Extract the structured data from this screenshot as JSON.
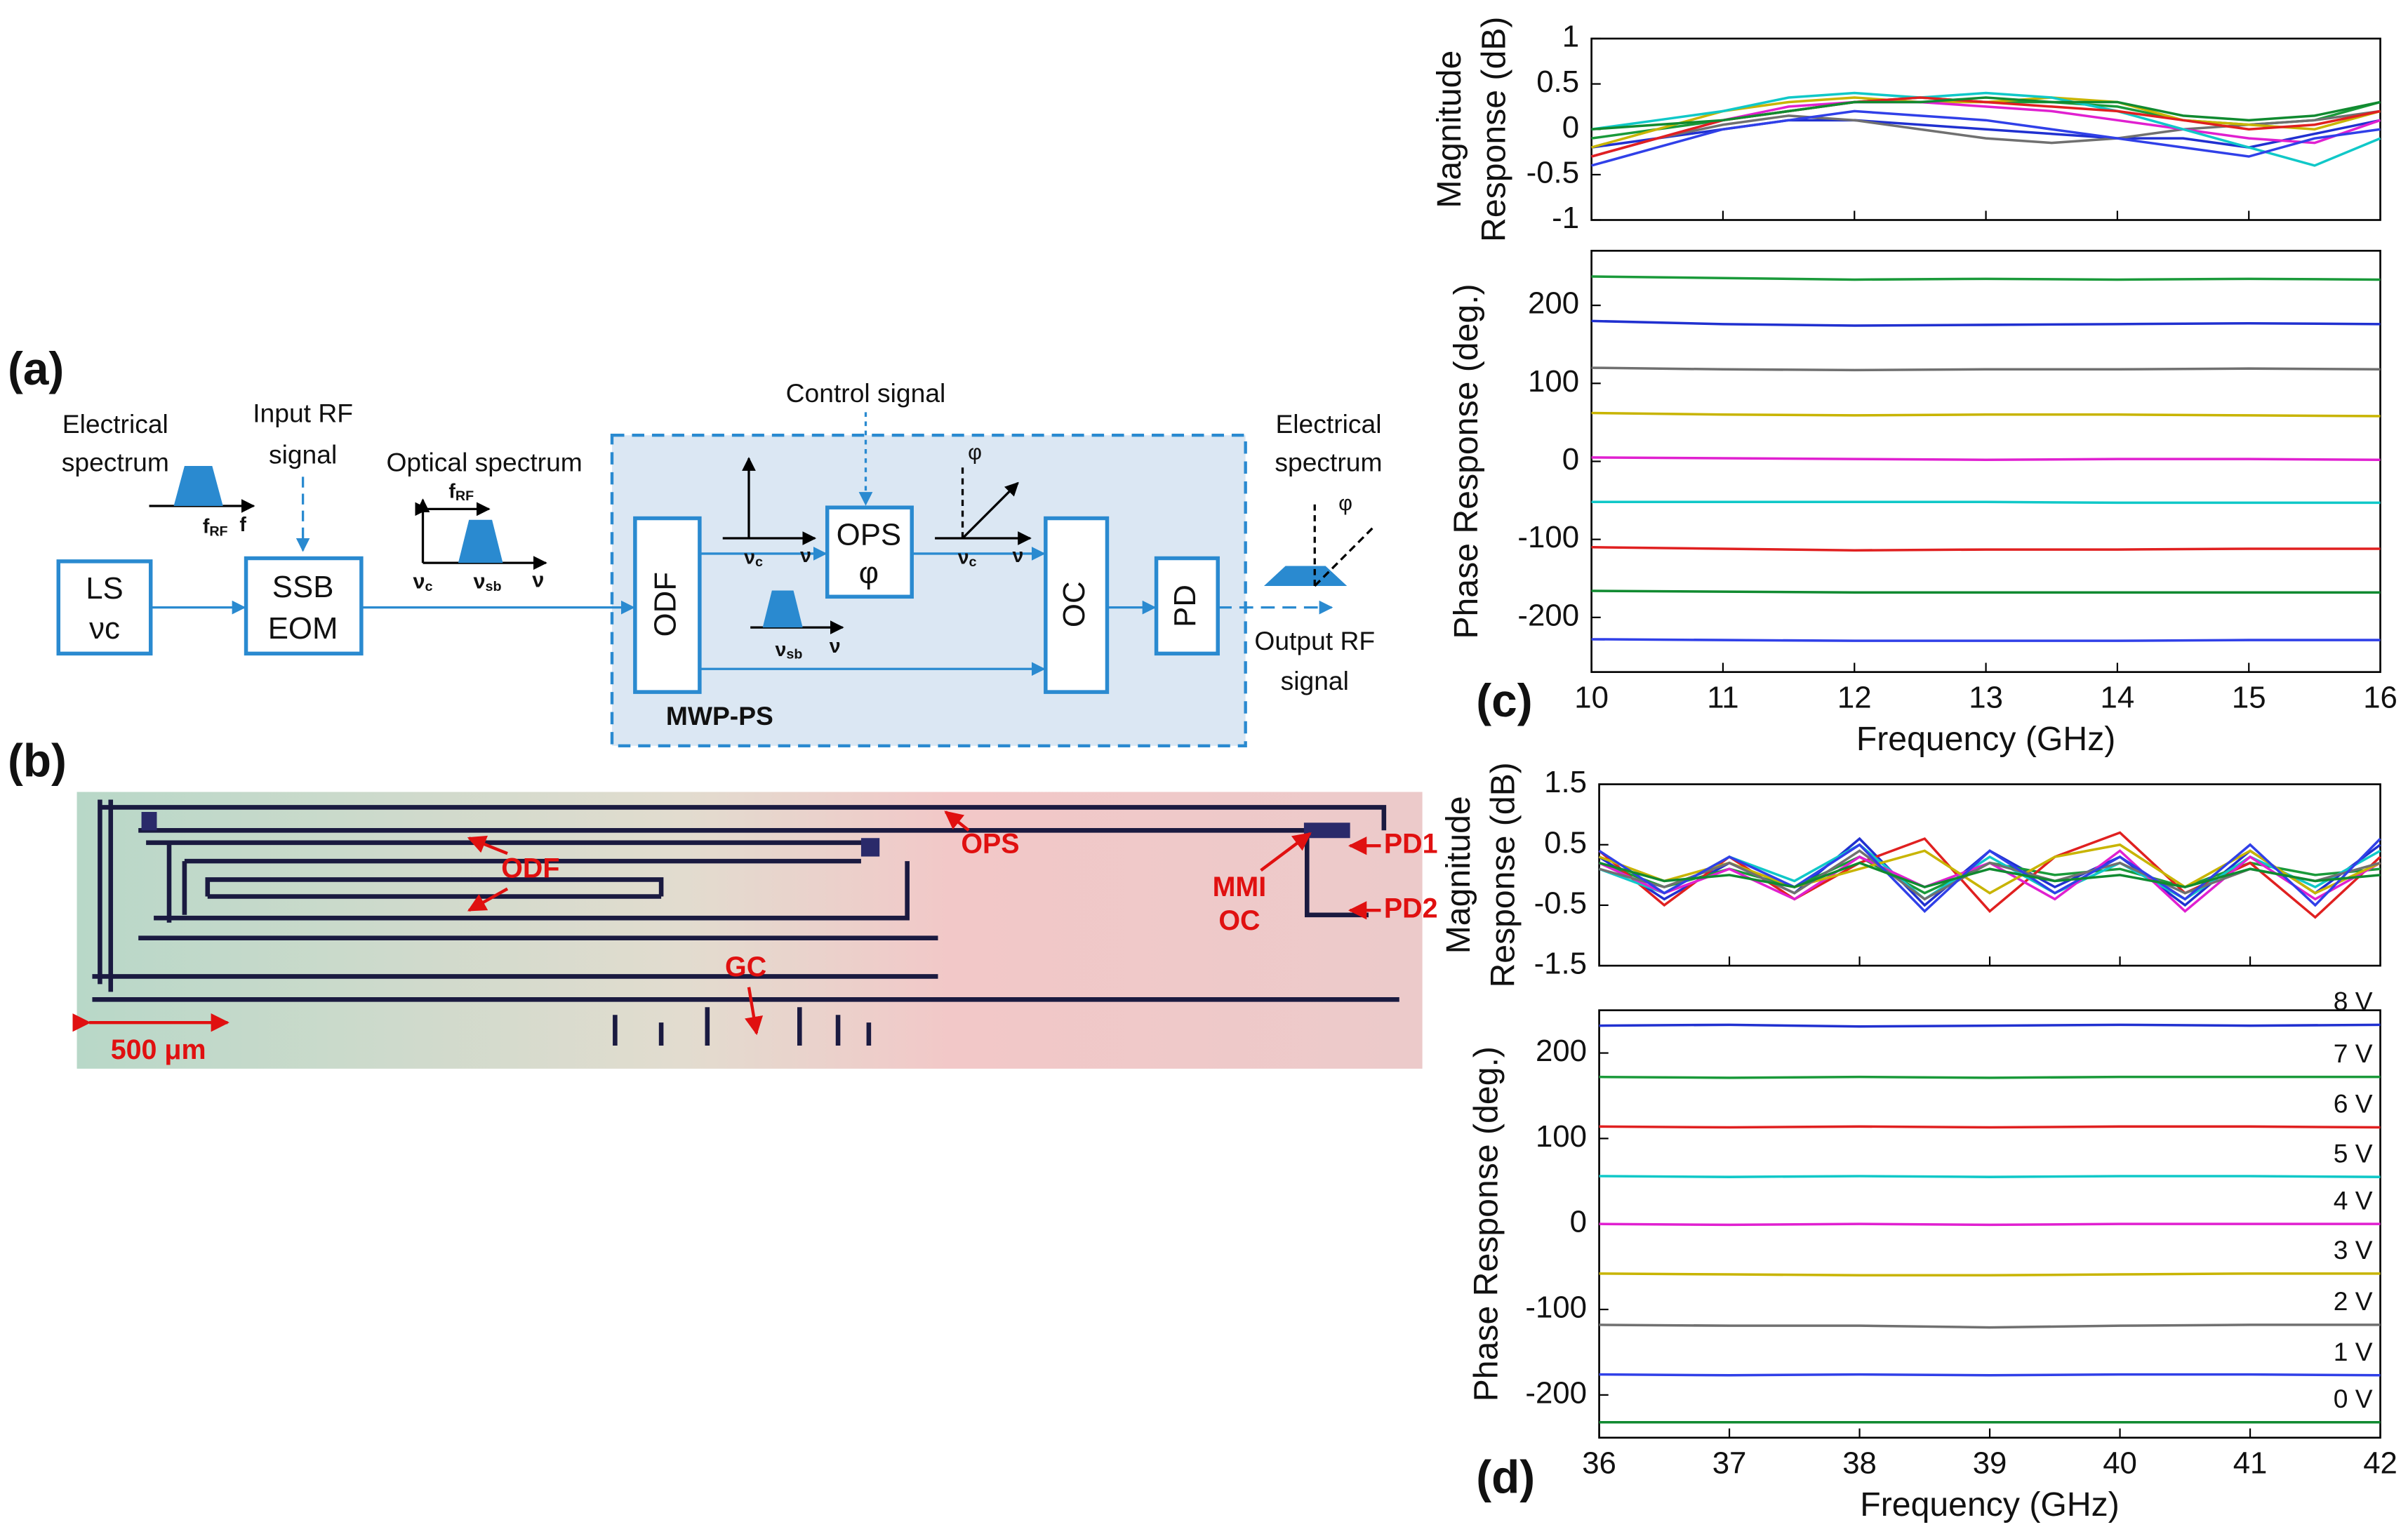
{
  "diagram": {
    "panel": "(a)",
    "left_spectrum_label": [
      "Electrical",
      "spectrum"
    ],
    "input_label": [
      "Input RF",
      "signal"
    ],
    "optical_label": "Optical spectrum",
    "control_label": "Control signal",
    "right_spectrum_label": [
      "Electrical",
      "spectrum"
    ],
    "output_label": [
      "Output RF",
      "signal"
    ],
    "group_label": "MWP-PS",
    "ls": [
      "LS",
      "νc"
    ],
    "eom": [
      "SSB",
      "EOM"
    ],
    "odf": "ODF",
    "ops": [
      "OPS",
      "φ"
    ],
    "oc": "OC",
    "pd": "PD",
    "f": "f",
    "rf": "RF",
    "nu": "ν",
    "c": "c",
    "sb": "sb",
    "phi": "φ"
  },
  "micrograph": {
    "panel": "(b)",
    "labels": [
      "OPS",
      "ODF",
      "MMI",
      "OC",
      "PD1",
      "PD2",
      "GC"
    ],
    "scale": "500 μm"
  },
  "chart_data": [
    {
      "type": "line",
      "panel": "(c)",
      "ylabel": [
        "Magnitude",
        "Response (dB)"
      ],
      "x": [
        10,
        10.5,
        11,
        11.5,
        12,
        12.5,
        13,
        13.5,
        14,
        14.5,
        15,
        15.5,
        16
      ],
      "xlim": [
        10,
        16
      ],
      "xticks": [
        10,
        11,
        12,
        13,
        14,
        15,
        16
      ],
      "ylim": [
        -1,
        1
      ],
      "yticks": [
        -1,
        -0.5,
        0,
        0.5,
        1
      ],
      "series": [
        {
          "color": "#1a9a3a",
          "values": [
            -0.1,
            0.0,
            0.1,
            0.2,
            0.3,
            0.35,
            0.3,
            0.3,
            0.25,
            0.1,
            0.05,
            0.1,
            0.3
          ]
        },
        {
          "color": "#2030d0",
          "values": [
            -0.2,
            -0.1,
            0.0,
            0.1,
            0.1,
            0.05,
            0.0,
            -0.05,
            -0.1,
            -0.1,
            -0.2,
            -0.05,
            0.1
          ]
        },
        {
          "color": "#707070",
          "values": [
            -0.3,
            -0.1,
            0.05,
            0.15,
            0.1,
            0.0,
            -0.1,
            -0.15,
            -0.1,
            0.0,
            0.05,
            0.1,
            0.2
          ]
        },
        {
          "color": "#c8b400",
          "values": [
            -0.2,
            0.0,
            0.2,
            0.3,
            0.35,
            0.3,
            0.3,
            0.35,
            0.3,
            0.1,
            0.05,
            0.0,
            0.2
          ]
        },
        {
          "color": "#e020d0",
          "values": [
            -0.3,
            -0.1,
            0.1,
            0.25,
            0.3,
            0.3,
            0.25,
            0.2,
            0.1,
            0.0,
            -0.1,
            -0.15,
            0.1
          ]
        },
        {
          "color": "#10c8c8",
          "values": [
            0.0,
            0.1,
            0.2,
            0.35,
            0.4,
            0.35,
            0.4,
            0.35,
            0.2,
            0.0,
            -0.2,
            -0.4,
            -0.1
          ]
        },
        {
          "color": "#e02020",
          "values": [
            -0.3,
            -0.1,
            0.1,
            0.2,
            0.3,
            0.35,
            0.3,
            0.25,
            0.2,
            0.1,
            0.0,
            0.05,
            0.2
          ]
        },
        {
          "color": "#108a30",
          "values": [
            0.0,
            0.05,
            0.1,
            0.2,
            0.3,
            0.3,
            0.35,
            0.3,
            0.3,
            0.15,
            0.1,
            0.15,
            0.3
          ]
        },
        {
          "color": "#3040e8",
          "values": [
            -0.4,
            -0.2,
            0.0,
            0.1,
            0.2,
            0.15,
            0.1,
            0.0,
            -0.1,
            -0.2,
            -0.3,
            -0.1,
            0.0
          ]
        }
      ]
    },
    {
      "type": "line",
      "xlabel": "Frequency (GHz)",
      "ylabel": [
        "Phase Response (deg.)"
      ],
      "x": [
        10,
        11,
        12,
        13,
        14,
        15,
        16
      ],
      "xlim": [
        10,
        16
      ],
      "xticks": [
        10,
        11,
        12,
        13,
        14,
        15,
        16
      ],
      "ylim": [
        -270,
        270
      ],
      "yticks": [
        -200,
        -100,
        0,
        100,
        200
      ],
      "series": [
        {
          "color": "#1a9a3a",
          "values": [
            237,
            235,
            233,
            234,
            233,
            234,
            233
          ]
        },
        {
          "color": "#2030d0",
          "values": [
            180,
            176,
            174,
            175,
            176,
            177,
            176
          ]
        },
        {
          "color": "#707070",
          "values": [
            120,
            118,
            117,
            118,
            118,
            119,
            118
          ]
        },
        {
          "color": "#c8b400",
          "values": [
            62,
            60,
            59,
            60,
            60,
            59,
            58
          ]
        },
        {
          "color": "#e020d0",
          "values": [
            5,
            4,
            3,
            2,
            3,
            3,
            2
          ]
        },
        {
          "color": "#10c8c8",
          "values": [
            -52,
            -52,
            -52,
            -52,
            -53,
            -53,
            -53
          ]
        },
        {
          "color": "#e02020",
          "values": [
            -110,
            -112,
            -114,
            -113,
            -113,
            -112,
            -112
          ]
        },
        {
          "color": "#108a30",
          "values": [
            -166,
            -167,
            -168,
            -168,
            -168,
            -168,
            -168
          ]
        },
        {
          "color": "#3040e8",
          "values": [
            -228,
            -229,
            -230,
            -230,
            -230,
            -229,
            -229
          ]
        }
      ]
    },
    {
      "type": "line",
      "panel": "(d)",
      "ylabel": [
        "Magnitude",
        "Response (dB)"
      ],
      "x": [
        36,
        36.5,
        37,
        37.5,
        38,
        38.5,
        39,
        39.5,
        40,
        40.5,
        41,
        41.5,
        42
      ],
      "xlim": [
        36,
        42
      ],
      "xticks": [
        36,
        37,
        38,
        39,
        40,
        41,
        42
      ],
      "ylim": [
        -1.5,
        1.5
      ],
      "yticks": [
        -1.5,
        -0.5,
        0.5,
        1.5
      ],
      "series": [
        {
          "color": "#2030d0",
          "values": [
            0.3,
            -0.4,
            0.2,
            -0.3,
            0.6,
            -0.5,
            0.4,
            -0.2,
            0.3,
            -0.5,
            0.4,
            -0.3,
            0.5
          ]
        },
        {
          "color": "#1a9a3a",
          "values": [
            0.2,
            -0.2,
            0.1,
            -0.2,
            0.3,
            -0.3,
            0.2,
            0.0,
            0.1,
            -0.2,
            0.2,
            0.0,
            0.1
          ]
        },
        {
          "color": "#e02020",
          "values": [
            0.4,
            -0.5,
            0.3,
            -0.4,
            0.2,
            0.6,
            -0.6,
            0.3,
            0.7,
            -0.3,
            0.2,
            -0.7,
            0.3
          ]
        },
        {
          "color": "#10c8c8",
          "values": [
            0.1,
            -0.3,
            0.3,
            -0.1,
            0.5,
            -0.4,
            0.3,
            -0.3,
            0.2,
            -0.4,
            0.3,
            -0.2,
            0.4
          ]
        },
        {
          "color": "#e020d0",
          "values": [
            0.2,
            -0.3,
            0.1,
            -0.4,
            0.3,
            -0.2,
            0.2,
            -0.4,
            0.4,
            -0.6,
            0.3,
            -0.4,
            0.2
          ]
        },
        {
          "color": "#c8b400",
          "values": [
            0.3,
            -0.1,
            0.2,
            -0.2,
            0.1,
            0.4,
            -0.3,
            0.3,
            0.5,
            -0.2,
            0.4,
            -0.3,
            0.2
          ]
        },
        {
          "color": "#707070",
          "values": [
            0.1,
            -0.2,
            0.2,
            -0.3,
            0.4,
            -0.4,
            0.2,
            -0.1,
            0.2,
            -0.3,
            0.1,
            -0.1,
            0.2
          ]
        },
        {
          "color": "#3040e8",
          "values": [
            0.4,
            -0.3,
            0.3,
            -0.2,
            0.5,
            -0.6,
            0.4,
            -0.3,
            0.3,
            -0.4,
            0.5,
            -0.5,
            0.6
          ]
        },
        {
          "color": "#108a30",
          "values": [
            0.2,
            -0.1,
            0.0,
            -0.2,
            0.2,
            -0.2,
            0.1,
            -0.1,
            0.0,
            -0.2,
            0.1,
            -0.1,
            0.0
          ]
        }
      ]
    },
    {
      "type": "line",
      "xlabel": "Frequency (GHz)",
      "ylabel": [
        "Phase Response (deg.)"
      ],
      "x": [
        36,
        37,
        38,
        39,
        40,
        41,
        42
      ],
      "xlim": [
        36,
        42
      ],
      "xticks": [
        36,
        37,
        38,
        39,
        40,
        41,
        42
      ],
      "ylim": [
        -250,
        250
      ],
      "yticks": [
        -200,
        -100,
        0,
        100,
        200
      ],
      "series": [
        {
          "name": "8 V",
          "color": "#2030d0",
          "values": [
            232,
            233,
            231,
            232,
            233,
            232,
            233
          ]
        },
        {
          "name": "7 V",
          "color": "#1a9a3a",
          "values": [
            172,
            171,
            172,
            171,
            172,
            172,
            172
          ]
        },
        {
          "name": "6 V",
          "color": "#e02020",
          "values": [
            114,
            113,
            114,
            113,
            114,
            114,
            113
          ]
        },
        {
          "name": "5 V",
          "color": "#10c8c8",
          "values": [
            56,
            55,
            56,
            55,
            56,
            56,
            55
          ]
        },
        {
          "name": "4 V",
          "color": "#e020d0",
          "values": [
            0,
            -1,
            0,
            -1,
            0,
            0,
            0
          ]
        },
        {
          "name": "3 V",
          "color": "#c8b400",
          "values": [
            -58,
            -59,
            -60,
            -60,
            -59,
            -58,
            -58
          ]
        },
        {
          "name": "2 V",
          "color": "#707070",
          "values": [
            -118,
            -119,
            -119,
            -121,
            -119,
            -118,
            -118
          ]
        },
        {
          "name": "1 V",
          "color": "#3040e8",
          "values": [
            -176,
            -177,
            -176,
            -177,
            -176,
            -176,
            -177
          ]
        },
        {
          "name": "0 V",
          "color": "#108a30",
          "values": [
            -232,
            -232,
            -232,
            -232,
            -232,
            -232,
            -232
          ]
        }
      ]
    }
  ]
}
